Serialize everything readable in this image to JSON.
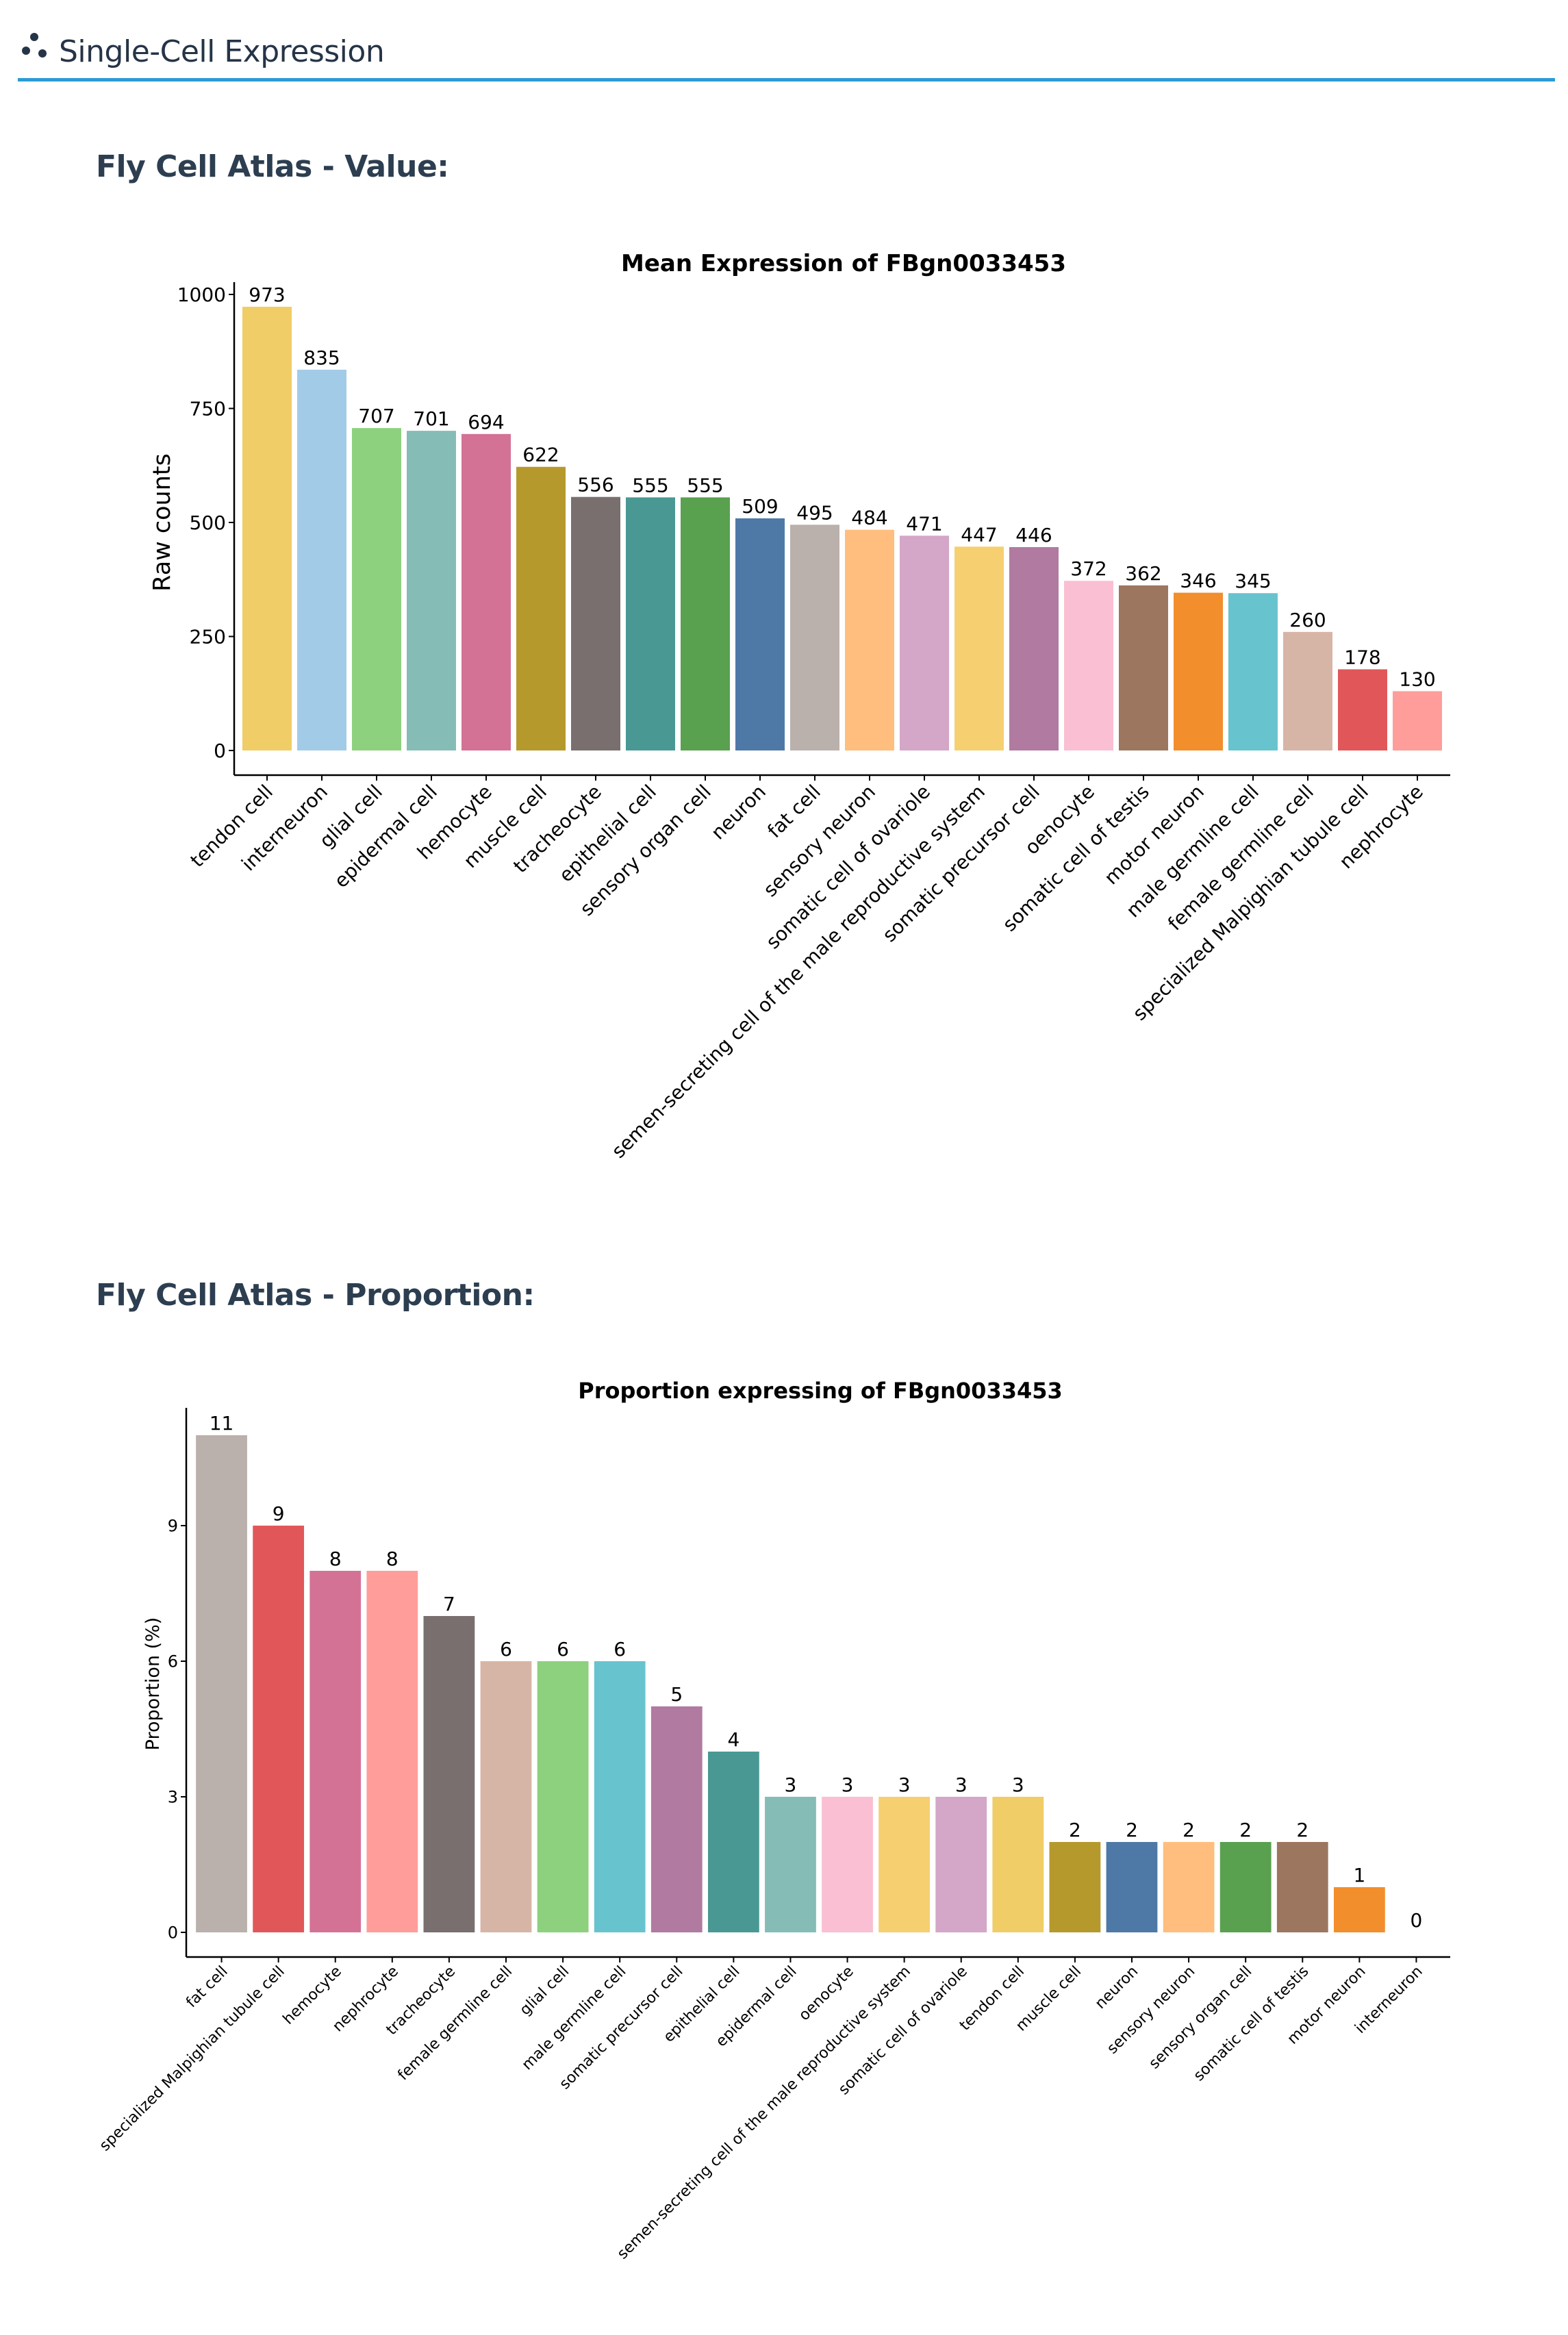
{
  "header": {
    "title": "Single-Cell Expression",
    "icon": "scatter-dots-icon"
  },
  "sections": {
    "value_title": "Fly Cell Atlas - Value:",
    "proportion_title": "Fly Cell Atlas - Proportion:"
  },
  "chart_data": [
    {
      "type": "bar",
      "title": "Mean Expression of FBgn0033453",
      "xlabel": "",
      "ylabel": "Raw counts",
      "ylim": [
        0,
        1000
      ],
      "yticks": [
        0,
        250,
        500,
        750,
        1000
      ],
      "categories": [
        "tendon cell",
        "interneuron",
        "glial cell",
        "epidermal cell",
        "hemocyte",
        "muscle cell",
        "tracheocyte",
        "epithelial cell",
        "sensory organ cell",
        "neuron",
        "fat cell",
        "sensory neuron",
        "somatic cell of ovariole",
        "semen-secreting cell of the male reproductive system",
        "somatic precursor cell",
        "oenocyte",
        "somatic cell of testis",
        "motor neuron",
        "male germline cell",
        "female germline cell",
        "specialized Malpighian tubule cell",
        "nephrocyte"
      ],
      "values": [
        973,
        835,
        707,
        701,
        694,
        622,
        556,
        555,
        555,
        509,
        495,
        484,
        471,
        447,
        446,
        372,
        362,
        346,
        345,
        260,
        178,
        130
      ],
      "colors": [
        "#f0cd66",
        "#a2cbe8",
        "#8dd17e",
        "#86bcb6",
        "#d37295",
        "#b6992d",
        "#796f6e",
        "#499894",
        "#59a14f",
        "#4e79a7",
        "#bab0ac",
        "#ffbe7d",
        "#d4a6c8",
        "#f6cf71",
        "#b07aa1",
        "#fabfd2",
        "#9d7660",
        "#f28e2b",
        "#67c4ce",
        "#d7b5a6",
        "#e15759",
        "#ff9d9a"
      ]
    },
    {
      "type": "bar",
      "title": "Proportion expressing of  FBgn0033453",
      "xlabel": "",
      "ylabel": "Proportion (%)",
      "ylim": [
        0,
        11
      ],
      "yticks": [
        0,
        3,
        6,
        9
      ],
      "categories": [
        "fat cell",
        "specialized Malpighian tubule cell",
        "hemocyte",
        "nephrocyte",
        "tracheocyte",
        "female germline cell",
        "glial cell",
        "male germline cell",
        "somatic precursor cell",
        "epithelial cell",
        "epidermal cell",
        "oenocyte",
        "semen-secreting cell of the male reproductive system",
        "somatic cell of ovariole",
        "tendon cell",
        "muscle cell",
        "neuron",
        "sensory neuron",
        "sensory organ cell",
        "somatic cell of testis",
        "motor neuron",
        "interneuron"
      ],
      "values": [
        11,
        9,
        8,
        8,
        7,
        6,
        6,
        6,
        5,
        4,
        3,
        3,
        3,
        3,
        3,
        2,
        2,
        2,
        2,
        2,
        1,
        0
      ],
      "colors": [
        "#bab0ac",
        "#e15759",
        "#d37295",
        "#ff9d9a",
        "#796f6e",
        "#d7b5a6",
        "#8dd17e",
        "#67c4ce",
        "#b07aa1",
        "#499894",
        "#86bcb6",
        "#fabfd2",
        "#f6cf71",
        "#d4a6c8",
        "#f0cd66",
        "#b6992d",
        "#4e79a7",
        "#ffbe7d",
        "#59a14f",
        "#9d7660",
        "#f28e2b",
        "#a2cbe8"
      ]
    }
  ]
}
